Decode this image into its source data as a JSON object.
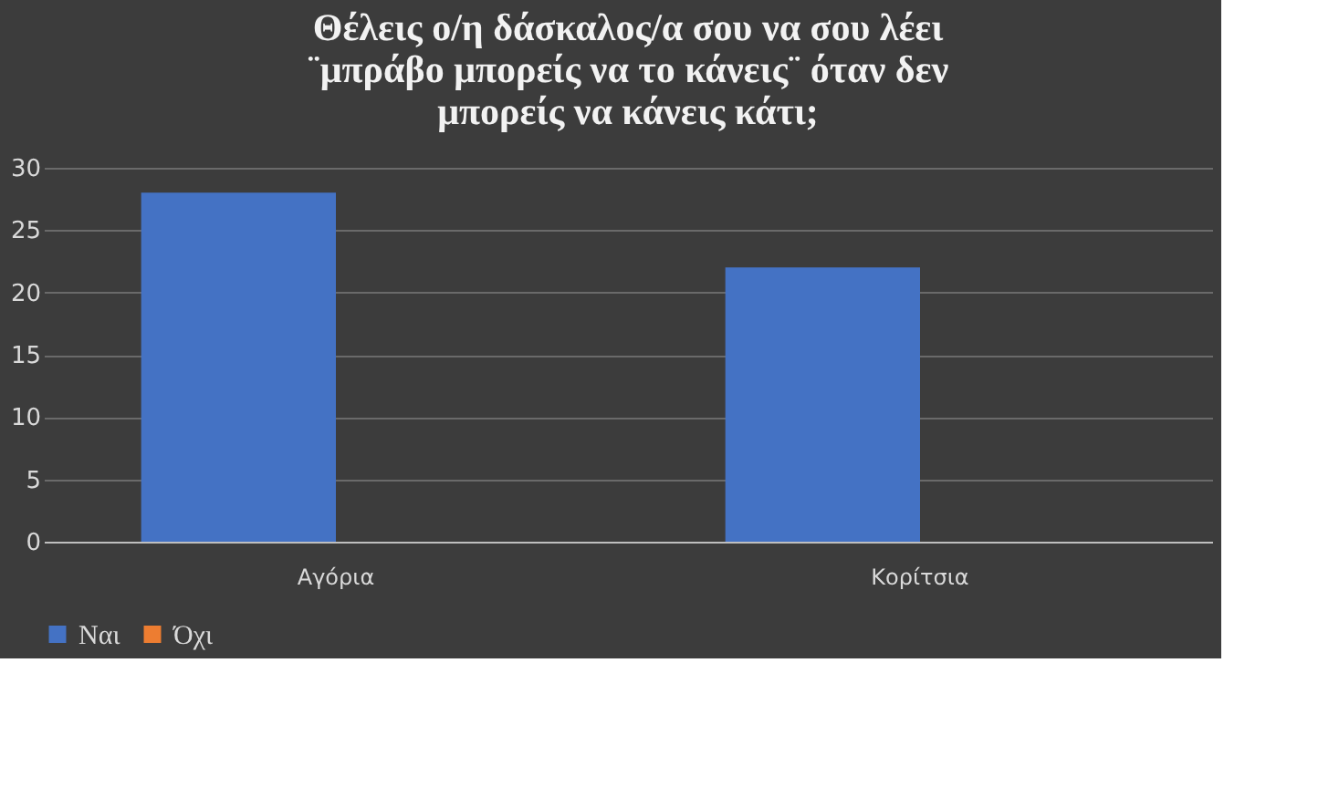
{
  "chart_data": {
    "type": "bar",
    "title": "Θέλεις ο/η δάσκαλος/α σου να σου λέει\n¨μπράβο μπορείς να το κάνεις¨ όταν δεν\nμπορείς να κάνεις κάτι;",
    "categories": [
      "Αγόρια",
      "Κορίτσια"
    ],
    "series": [
      {
        "name": "Ναι",
        "color": "#4472c4",
        "values": [
          28,
          22
        ]
      },
      {
        "name": "Όχι",
        "color": "#ed7d31",
        "values": [
          0,
          0
        ]
      }
    ],
    "ylim": [
      0,
      30
    ],
    "yticks": [
      0,
      5,
      10,
      15,
      20,
      25,
      30
    ],
    "grid": "y",
    "legend": "bottom"
  }
}
